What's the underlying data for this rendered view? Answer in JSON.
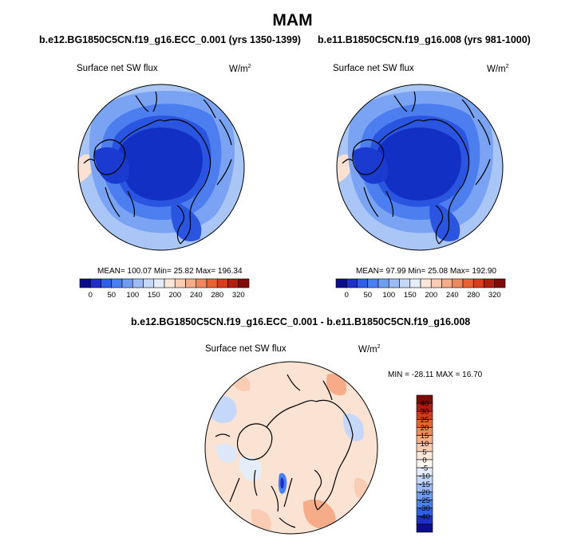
{
  "figure": {
    "title": "MAM",
    "panels": [
      {
        "title": "b.e12.BG1850C5CN.f19_g16.ECC_0.001 (yrs 1350-1399)",
        "variable": "Surface net SW flux",
        "units_base": "W/m",
        "units_exp": "2",
        "stats": "MEAN= 100.07  Min=  25.82  Max= 196.34"
      },
      {
        "title": "b.e11.B1850C5CN.f19_g16.008 (yrs 981-1000)",
        "variable": "Surface net SW flux",
        "units_base": "W/m",
        "units_exp": "2",
        "stats": "MEAN=  97.99  Min=  25.08  Max= 192.90"
      },
      {
        "title": "b.e12.BG1850C5CN.f19_g16.ECC_0.001 - b.e11.B1850C5CN.f19_g16.008",
        "variable": "Surface net SW flux",
        "units_base": "W/m",
        "units_exp": "2",
        "stats": "MIN = -28.11 MAX =  16.70"
      }
    ]
  },
  "chart_data": [
    {
      "type": "heatmap",
      "projection": "polar stereographic (north pole)",
      "title": "b.e12.BG1850C5CN.f19_g16.ECC_0.001 (yrs 1350-1399)",
      "variable": "Surface net SW flux",
      "units": "W/m2",
      "mean": 100.07,
      "min": 25.82,
      "max": 196.34,
      "colorbar": {
        "orientation": "horizontal",
        "tick_labels": [
          "0",
          "50",
          "100",
          "150",
          "200",
          "240",
          "280",
          "320"
        ],
        "colors": [
          "#0b0d8c",
          "#1d2fc8",
          "#2f5ee8",
          "#4a7ff0",
          "#6f9cf3",
          "#9dbcf6",
          "#c6d8f9",
          "#e5edfb",
          "#fbe6da",
          "#f9ccb3",
          "#f6ac89",
          "#f0885f",
          "#e96332",
          "#d83d1c",
          "#b21f12",
          "#7f0a0a"
        ]
      }
    },
    {
      "type": "heatmap",
      "projection": "polar stereographic (north pole)",
      "title": "b.e11.B1850C5CN.f19_g16.008 (yrs 981-1000)",
      "variable": "Surface net SW flux",
      "units": "W/m2",
      "mean": 97.99,
      "min": 25.08,
      "max": 192.9,
      "colorbar": {
        "orientation": "horizontal",
        "tick_labels": [
          "0",
          "50",
          "100",
          "150",
          "200",
          "240",
          "280",
          "320"
        ],
        "colors": [
          "#0b0d8c",
          "#1d2fc8",
          "#2f5ee8",
          "#4a7ff0",
          "#6f9cf3",
          "#9dbcf6",
          "#c6d8f9",
          "#e5edfb",
          "#fbe6da",
          "#f9ccb3",
          "#f6ac89",
          "#f0885f",
          "#e96332",
          "#d83d1c",
          "#b21f12",
          "#7f0a0a"
        ]
      }
    },
    {
      "type": "heatmap",
      "projection": "polar stereographic (north pole)",
      "title": "b.e12.BG1850C5CN.f19_g16.ECC_0.001 - b.e11.B1850C5CN.f19_g16.008",
      "variable": "Surface net SW flux",
      "units": "W/m2",
      "min": -28.11,
      "max": 16.7,
      "colorbar": {
        "orientation": "vertical",
        "tick_labels": [
          "40",
          "30",
          "25",
          "20",
          "15",
          "10",
          "5",
          "0",
          "-5",
          "-10",
          "-15",
          "-20",
          "-25",
          "-30",
          "-40"
        ],
        "colors": [
          "#7f0a0a",
          "#b01a12",
          "#d33a1c",
          "#e96332",
          "#f08a5e",
          "#f6ad89",
          "#f9ccb3",
          "#fbe6da",
          "#fdf5ee",
          "#e5edfb",
          "#c6d8f9",
          "#9dbcf6",
          "#6f9cf3",
          "#4a7ff0",
          "#2f5ee8",
          "#1d2fc8",
          "#0b0d8c"
        ]
      }
    }
  ]
}
